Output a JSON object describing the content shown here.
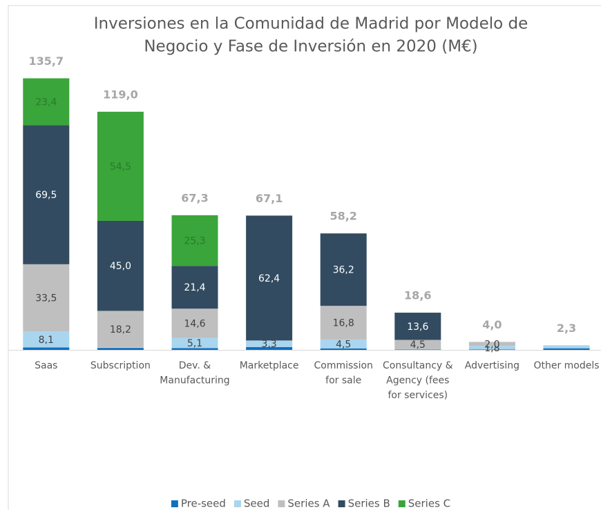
{
  "chart_data": {
    "type": "stacked-bar",
    "title": [
      "Inversiones en la Comunidad de Madrid por Modelo de",
      "Negocio y Fase de Inversión en 2020 (M€)"
    ],
    "categories": [
      [
        "Saas"
      ],
      [
        "Subscription"
      ],
      [
        "Dev. &",
        "Manufacturing"
      ],
      [
        "Marketplace"
      ],
      [
        "Commission",
        "for sale"
      ],
      [
        "Consultancy &",
        "Agency (fees",
        "for services)"
      ],
      [
        "Advertising"
      ],
      [
        "Other models"
      ]
    ],
    "ylim": [
      0,
      140
    ],
    "series": [
      {
        "name": "Pre-seed",
        "color": "#0f6fc0",
        "values": [
          1.2,
          1.0,
          0.9,
          1.4,
          0.7,
          0.2,
          0.2,
          0.8
        ],
        "value_labels": [
          null,
          null,
          null,
          null,
          null,
          null,
          null,
          null
        ]
      },
      {
        "name": "Seed",
        "color": "#a9d5ee",
        "values": [
          8.1,
          0.3,
          5.1,
          3.3,
          4.5,
          0.3,
          1.8,
          1.5
        ],
        "value_labels": [
          "8,1",
          null,
          "5,1",
          "3,3",
          "4,5",
          null,
          "1,8",
          null
        ]
      },
      {
        "name": "Series A",
        "color": "#bfbfbf",
        "values": [
          33.5,
          18.2,
          14.6,
          null,
          16.8,
          4.5,
          2.0,
          null
        ],
        "value_labels": [
          "33,5",
          "18,2",
          "14,6",
          null,
          "16,8",
          "4,5",
          "2,0",
          null
        ]
      },
      {
        "name": "Series B",
        "color": "#324b60",
        "values": [
          69.5,
          45.0,
          21.4,
          62.4,
          36.2,
          13.6,
          null,
          null
        ],
        "value_labels": [
          "69,5",
          "45,0",
          "21,4",
          "62,4",
          "36,2",
          "13,6",
          null,
          null
        ]
      },
      {
        "name": "Series C",
        "color": "#3aa53a",
        "values": [
          23.4,
          54.5,
          25.3,
          null,
          null,
          null,
          null,
          null
        ],
        "value_labels": [
          "23,4",
          "54,5",
          "25,3",
          null,
          null,
          null,
          null,
          null
        ]
      }
    ],
    "totals": [
      135.7,
      119.0,
      67.3,
      67.1,
      58.2,
      18.6,
      4.0,
      2.3
    ],
    "total_labels": [
      "135,7",
      "119,0",
      "67,3",
      "67,1",
      "58,2",
      "18,6",
      "4,0",
      "2,3"
    ],
    "legend": "bottom"
  }
}
